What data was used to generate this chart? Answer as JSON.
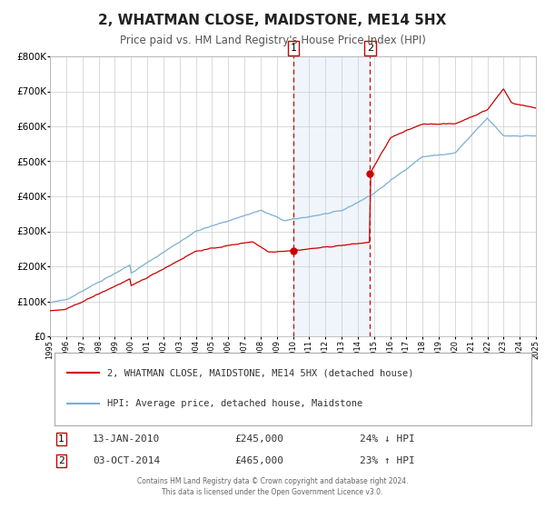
{
  "title": "2, WHATMAN CLOSE, MAIDSTONE, ME14 5HX",
  "subtitle": "Price paid vs. HM Land Registry's House Price Index (HPI)",
  "legend_line1": "2, WHATMAN CLOSE, MAIDSTONE, ME14 5HX (detached house)",
  "legend_line2": "HPI: Average price, detached house, Maidstone",
  "annotation1_label": "1",
  "annotation1_date": "13-JAN-2010",
  "annotation1_price": "£245,000",
  "annotation1_hpi": "24% ↓ HPI",
  "annotation2_label": "2",
  "annotation2_date": "03-OCT-2014",
  "annotation2_price": "£465,000",
  "annotation2_hpi": "23% ↑ HPI",
  "footer_line1": "Contains HM Land Registry data © Crown copyright and database right 2024.",
  "footer_line2": "This data is licensed under the Open Government Licence v3.0.",
  "hpi_color": "#7bafd4",
  "price_color": "#cc0000",
  "marker_color": "#cc0000",
  "vline1_x": 2010.04,
  "vline2_x": 2014.75,
  "sale1_y": 245000,
  "sale2_y": 465000,
  "ylim": [
    0,
    800000
  ],
  "xlim_start": 1995,
  "xlim_end": 2025,
  "background_color": "#ffffff",
  "grid_color": "#cccccc",
  "shade_color": "#ddeeff"
}
